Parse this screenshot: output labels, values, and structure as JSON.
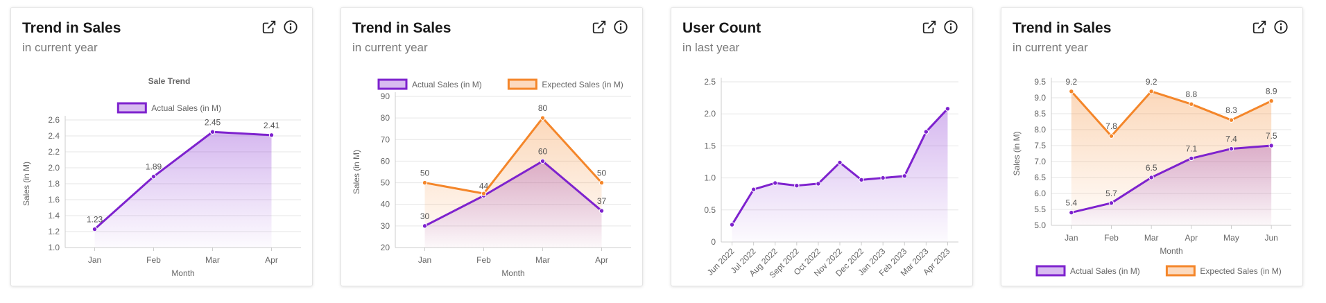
{
  "colors": {
    "purple": "#7e22ce",
    "orange": "#f4862a",
    "grid": "#e6e6e6",
    "axis": "#cccccc",
    "text": "#666666"
  },
  "cards": [
    {
      "title": "Trend in Sales",
      "subtitle": "in current year"
    },
    {
      "title": "Trend in Sales",
      "subtitle": "in current year"
    },
    {
      "title": "User Count",
      "subtitle": "in last year"
    },
    {
      "title": "Trend in Sales",
      "subtitle": "in current year"
    }
  ],
  "chart_data": [
    {
      "type": "area",
      "title": "Sale Trend",
      "xlabel": "Month",
      "ylabel": "Sales (in M)",
      "categories": [
        "Jan",
        "Feb",
        "Mar",
        "Apr"
      ],
      "yticks": [
        "1.0",
        "1.2",
        "1.4",
        "1.6",
        "1.8",
        "2.0",
        "2.2",
        "2.4",
        "2.6"
      ],
      "ylim": [
        1.0,
        2.6
      ],
      "legend_position": "top",
      "series": [
        {
          "name": "Actual Sales (in M)",
          "color": "#7e22ce",
          "values": [
            1.23,
            1.89,
            2.45,
            2.41
          ],
          "labels": [
            "1.23",
            "1.89",
            "2.45",
            "2.41"
          ]
        }
      ]
    },
    {
      "type": "area",
      "xlabel": "Month",
      "ylabel": "Sales (in M)",
      "categories": [
        "Jan",
        "Feb",
        "Mar",
        "Apr"
      ],
      "yticks": [
        "20",
        "30",
        "40",
        "50",
        "60",
        "70",
        "80",
        "90"
      ],
      "ylim": [
        20,
        90
      ],
      "legend_position": "top",
      "series": [
        {
          "name": "Actual Sales (in M)",
          "color": "#7e22ce",
          "values": [
            30,
            44,
            60,
            37
          ],
          "labels": [
            "30",
            "44",
            "60",
            "37"
          ]
        },
        {
          "name": "Expected Sales (in M)",
          "color": "#f4862a",
          "values": [
            50,
            45,
            80,
            50
          ],
          "labels": [
            "50",
            "",
            "80",
            "50"
          ]
        }
      ]
    },
    {
      "type": "area",
      "categories": [
        "Jun 2022",
        "Jul 2022",
        "Aug 2022",
        "Sept 2022",
        "Oct 2022",
        "Nov 2022",
        "Dec 2022",
        "Jan 2023",
        "Feb 2023",
        "Mar 2023",
        "Apr 2023"
      ],
      "yticks": [
        "0",
        "0.5",
        "1.0",
        "1.5",
        "2.0",
        "2.5"
      ],
      "ylim": [
        0,
        2.5
      ],
      "series": [
        {
          "color": "#7e22ce",
          "values": [
            0.27,
            0.82,
            0.92,
            0.88,
            0.91,
            1.24,
            0.97,
            1.0,
            1.03,
            1.72,
            2.08
          ]
        }
      ]
    },
    {
      "type": "area",
      "xlabel": "Month",
      "ylabel": "Sales (in M)",
      "categories": [
        "Jan",
        "Feb",
        "Mar",
        "Apr",
        "May",
        "Jun"
      ],
      "yticks": [
        "5.0",
        "5.5",
        "6.0",
        "6.5",
        "7.0",
        "7.5",
        "8.0",
        "8.5",
        "9.0",
        "9.5"
      ],
      "ylim": [
        5.0,
        9.5
      ],
      "legend_position": "bottom",
      "series": [
        {
          "name": "Actual Sales (in M)",
          "color": "#7e22ce",
          "values": [
            5.4,
            5.7,
            6.5,
            7.1,
            7.4,
            7.5
          ],
          "labels": [
            "5.4",
            "5.7",
            "6.5",
            "7.1",
            "7.4",
            "7.5"
          ]
        },
        {
          "name": "Expected Sales (in M)",
          "color": "#f4862a",
          "values": [
            9.2,
            7.8,
            9.2,
            8.8,
            8.3,
            8.9
          ],
          "labels": [
            "9.2",
            "7.8",
            "9.2",
            "8.8",
            "8.3",
            "8.9"
          ]
        }
      ]
    }
  ]
}
